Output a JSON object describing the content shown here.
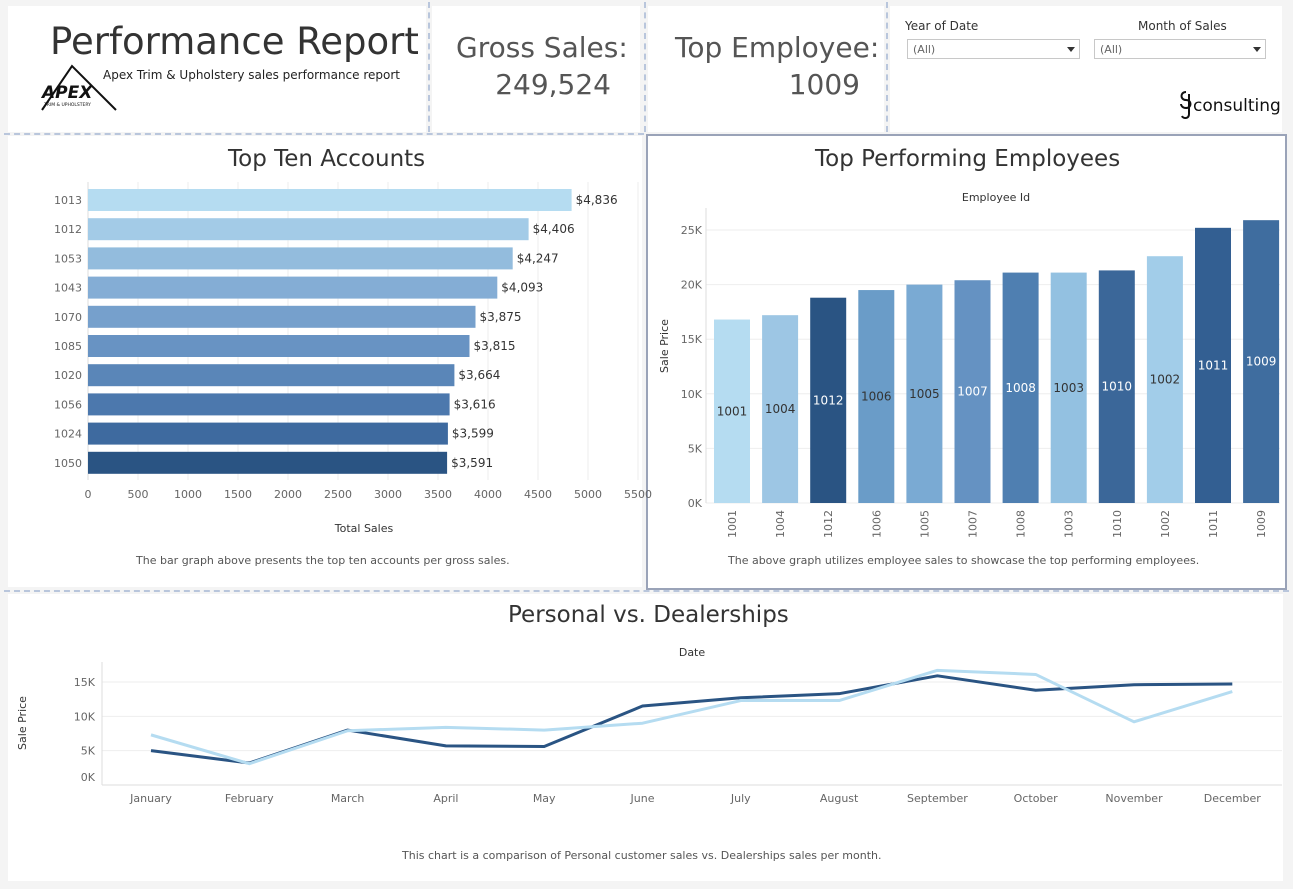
{
  "header": {
    "title": "Performance Report",
    "subtitle": "Apex Trim & Upholstery sales performance report",
    "logo_text": "APEX",
    "logo_subtext": "TRIM & UPHOLSTERY",
    "consulting_logo": "consulting"
  },
  "kpis": {
    "gross_sales_label": "Gross Sales:",
    "gross_sales_value": "249,524",
    "top_employee_label": "Top Employee:",
    "top_employee_value": "1009"
  },
  "filters": {
    "year_label": "Year of Date",
    "year_value": "(All)",
    "month_label": "Month of Sales",
    "month_value": "(All)"
  },
  "colors": {
    "light": "#b5dcf1",
    "dark": "#2a5483",
    "line_personal": "#2a5483",
    "line_dealership": "#b5dcf1"
  },
  "chart_data": [
    {
      "type": "bar",
      "orientation": "horizontal",
      "title": "Top Ten Accounts",
      "xlabel": "Total Sales",
      "caption": "The bar graph above presents the top ten accounts per gross sales.",
      "categories": [
        "1013",
        "1012",
        "1053",
        "1043",
        "1070",
        "1085",
        "1020",
        "1056",
        "1024",
        "1050"
      ],
      "values": [
        4836,
        4406,
        4247,
        4093,
        3875,
        3815,
        3664,
        3616,
        3599,
        3591
      ],
      "labels": [
        "$4,836",
        "$4,406",
        "$4,247",
        "$4,093",
        "$3,875",
        "$3,815",
        "$3,664",
        "$3,616",
        "$3,599",
        "$3,591"
      ],
      "bar_colors": [
        "#b5dcf1",
        "#a3cbe7",
        "#93bcdd",
        "#84add5",
        "#76a0cc",
        "#6893c3",
        "#5a86b8",
        "#4c78ad",
        "#3e6a9f",
        "#2a5483"
      ],
      "xticks": [
        "0",
        "500",
        "1000",
        "1500",
        "2000",
        "2500",
        "3000",
        "3500",
        "4000",
        "4500",
        "5000",
        "5500"
      ],
      "xlim": [
        0,
        5500
      ]
    },
    {
      "type": "bar",
      "title": "Top Performing Employees",
      "xlabel": "Employee Id",
      "ylabel": "Sale Price",
      "caption": "The above graph utilizes employee sales to showcase the top performing employees.",
      "categories": [
        "1001",
        "1004",
        "1012",
        "1006",
        "1005",
        "1007",
        "1008",
        "1003",
        "1010",
        "1002",
        "1011",
        "1009"
      ],
      "values": [
        16800,
        17200,
        18800,
        19500,
        20000,
        20400,
        21100,
        21100,
        21300,
        22600,
        25200,
        25900
      ],
      "bar_colors": [
        "#b5dcf1",
        "#9dc6e4",
        "#2a5483",
        "#6a9cc8",
        "#7aaad3",
        "#6592c2",
        "#4f7fb1",
        "#93c1e1",
        "#3b6799",
        "#a2cde9",
        "#335f92",
        "#3f6d9f"
      ],
      "label_colors": [
        "#333333",
        "#333333",
        "#ffffff",
        "#333333",
        "#333333",
        "#ffffff",
        "#ffffff",
        "#333333",
        "#ffffff",
        "#333333",
        "#ffffff",
        "#ffffff"
      ],
      "yticks": [
        "0K",
        "5K",
        "10K",
        "15K",
        "20K",
        "25K"
      ],
      "ylim": [
        0,
        27000
      ]
    },
    {
      "type": "line",
      "title": "Personal vs. Dealerships",
      "xlabel": "Date",
      "ylabel": "Sale Price",
      "caption": "This chart is a comparison of Personal customer sales vs. Dealerships sales per month.",
      "categories": [
        "January",
        "February",
        "March",
        "April",
        "May",
        "June",
        "July",
        "August",
        "September",
        "October",
        "November",
        "December"
      ],
      "series": [
        {
          "values": [
            5000,
            3200,
            8000,
            5700,
            5600,
            11500,
            12700,
            13300,
            15900,
            13800,
            14600,
            14700
          ]
        },
        {
          "values": [
            7300,
            3100,
            7900,
            8400,
            8000,
            9000,
            12300,
            12300,
            16700,
            16100,
            9200,
            13600
          ]
        }
      ],
      "yticks": [
        "0K",
        "5K",
        "10K",
        "15K"
      ],
      "ylim": [
        0,
        17000
      ]
    }
  ]
}
